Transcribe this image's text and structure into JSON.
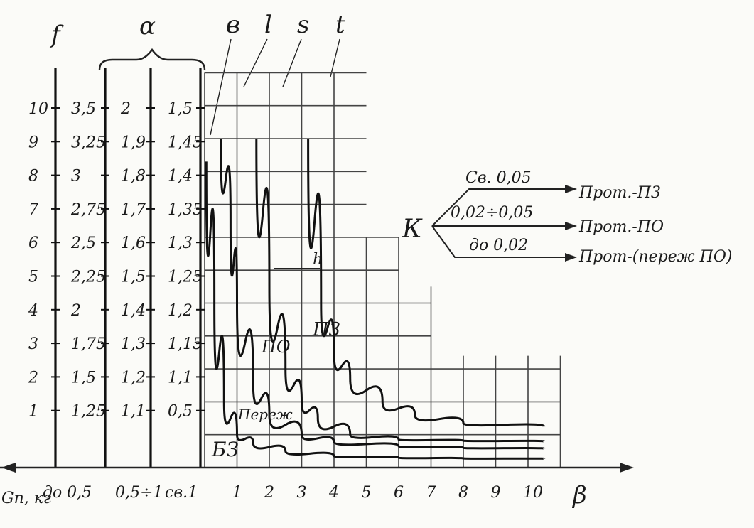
{
  "chart_data": {
    "type": "line",
    "title": "",
    "xlabel": "β",
    "ylabel": "",
    "xlim": [
      0,
      11
    ],
    "x_ticks": [
      "1",
      "2",
      "3",
      "4",
      "5",
      "6",
      "7",
      "8",
      "9",
      "10"
    ],
    "x_axis_label": "β",
    "left_scales": [
      {
        "name": "f",
        "ticks": [
          "10",
          "9",
          "8",
          "7",
          "6",
          "5",
          "4",
          "3",
          "2",
          "1"
        ],
        "column_label": "Gп, кг"
      },
      {
        "name": "α",
        "ticks": [
          "3,5",
          "3,25",
          "3",
          "2,75",
          "2,5",
          "2,25",
          "2",
          "1,75",
          "1,5",
          "1,25"
        ],
        "column_label": "до 0,5"
      },
      {
        "name": "α",
        "ticks": [
          "2",
          "1,9",
          "1,8",
          "1,7",
          "1,6",
          "1,5",
          "1,4",
          "1,3",
          "1,2",
          "1,1"
        ],
        "column_label": "0,5÷1"
      },
      {
        "name": "α",
        "ticks": [
          "1,5",
          "1,45",
          "1,4",
          "1,35",
          "1,3",
          "1,25",
          "1,2",
          "1,15",
          "1,1",
          "0,5"
        ],
        "column_label": "св.1"
      }
    ],
    "scale_header_f": "f",
    "scale_header_alpha": "α",
    "series": [
      {
        "name": "в",
        "x": [
          0.05,
          0.3,
          0.6,
          1.0,
          1.5,
          2.5,
          4.0,
          6.0,
          8.0,
          10.5
        ],
        "y": [
          9.3,
          5.0,
          2.0,
          1.0,
          0.75,
          0.5,
          0.35,
          0.3,
          0.28,
          0.27
        ]
      },
      {
        "name": "l",
        "x": [
          0.5,
          0.8,
          1.0,
          1.5,
          2.0,
          3.0,
          4.0,
          6.0,
          8.0,
          10.5
        ],
        "y": [
          10.0,
          7.5,
          5.0,
          2.6,
          1.6,
          1.0,
          0.78,
          0.65,
          0.6,
          0.58
        ]
      },
      {
        "name": "s",
        "x": [
          1.6,
          2.0,
          2.5,
          3.0,
          3.5,
          4.5,
          6.0,
          8.0,
          10.5
        ],
        "y": [
          10.0,
          5.5,
          3.0,
          2.0,
          1.5,
          1.0,
          0.85,
          0.82,
          0.8
        ]
      },
      {
        "name": "t",
        "x": [
          3.2,
          3.6,
          4.0,
          4.5,
          5.5,
          6.5,
          8.0,
          10.5
        ],
        "y": [
          10.0,
          5.0,
          3.5,
          2.7,
          2.0,
          1.6,
          1.35,
          1.25
        ]
      }
    ],
    "zone_labels": [
      "П3",
      "ПО",
      "Переж",
      "БЗ"
    ],
    "arrow_label": "h",
    "grid": true
  },
  "legend_note": {
    "k_label": "К",
    "rows": [
      {
        "condition": "Св. 0,05",
        "result": "Прот.-П3"
      },
      {
        "condition": "0,02÷0,05",
        "result": "Прот.-ПО"
      },
      {
        "condition": "до 0,02",
        "result": "Прот-(переж ПО)"
      }
    ]
  }
}
